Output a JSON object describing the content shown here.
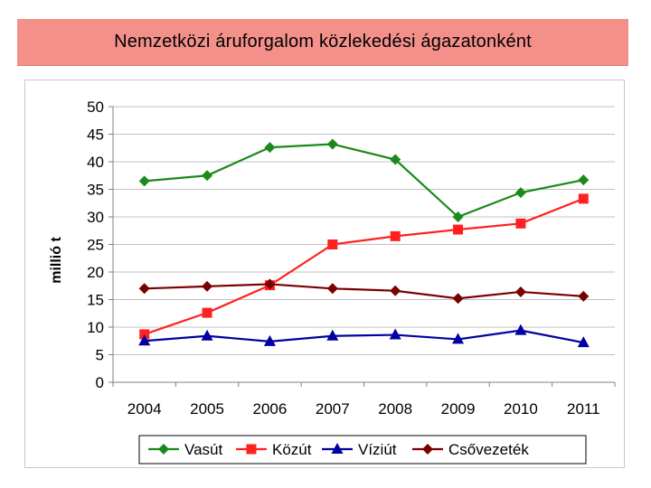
{
  "title": "Nemzetközi áruforgalom közlekedési ágazatonként",
  "chart_data": {
    "type": "line",
    "title": "",
    "xlabel": "",
    "ylabel": "millió t",
    "ylim": [
      0,
      50
    ],
    "yticks": [
      0,
      5,
      10,
      15,
      20,
      25,
      30,
      35,
      40,
      45,
      50
    ],
    "categories": [
      "2004",
      "2005",
      "2006",
      "2007",
      "2008",
      "2009",
      "2010",
      "2011"
    ],
    "grid": "horizontal",
    "legend_position": "bottom",
    "series": [
      {
        "name": "Vasút",
        "color": "#1a8a1a",
        "marker": "diamond",
        "values": [
          36.5,
          37.5,
          42.6,
          43.2,
          40.4,
          30.0,
          34.4,
          36.7
        ]
      },
      {
        "name": "Közút",
        "color": "#ff2020",
        "marker": "square",
        "values": [
          8.7,
          12.6,
          17.6,
          25.0,
          26.5,
          27.7,
          28.8,
          33.3
        ]
      },
      {
        "name": "Víziút",
        "color": "#0000a0",
        "marker": "triangle",
        "values": [
          7.5,
          8.4,
          7.4,
          8.4,
          8.6,
          7.8,
          9.4,
          7.2
        ]
      },
      {
        "name": "Csővezeték",
        "color": "#7a0000",
        "marker": "diamond",
        "values": [
          17.0,
          17.4,
          17.8,
          17.0,
          16.6,
          15.2,
          16.4,
          15.6
        ]
      }
    ]
  }
}
